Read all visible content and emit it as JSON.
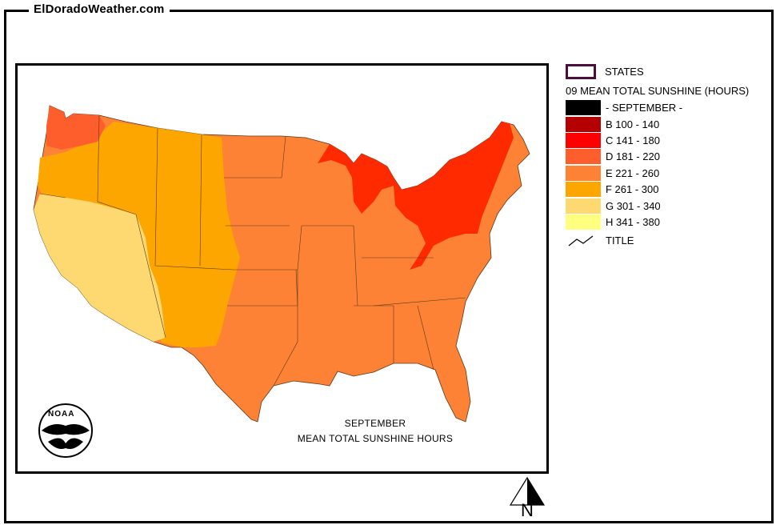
{
  "site_title": "ElDoradoWeather.com",
  "map": {
    "caption_line1": "SEPTEMBER",
    "caption_line2": "MEAN TOTAL SUNSHINE HOURS",
    "logo_text": "NOAA"
  },
  "legend": {
    "states_label": "STATES",
    "layer_title": "09 MEAN TOTAL SUNSHINE (HOURS)",
    "classes": [
      {
        "label": "- SEPTEMBER -",
        "color": "#000000"
      },
      {
        "label": "B 100 - 140",
        "color": "#b40000"
      },
      {
        "label": "C 141 - 180",
        "color": "#ff0000"
      },
      {
        "label": "D 181 - 220",
        "color": "#fe5e2b"
      },
      {
        "label": "E 221 - 260",
        "color": "#fe8235"
      },
      {
        "label": "F 261 - 300",
        "color": "#fea600"
      },
      {
        "label": "G 301 - 340",
        "color": "#fed870"
      },
      {
        "label": "H 341 - 380",
        "color": "#ffff80"
      }
    ],
    "title_label": "TITLE"
  },
  "north_arrow": {
    "label": "N"
  }
}
